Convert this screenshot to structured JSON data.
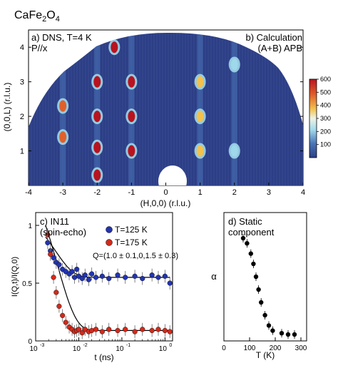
{
  "figure": {
    "compound_base": "CaFe",
    "compound_sub1": "2",
    "compound_mid": "O",
    "compound_sub2": "4"
  },
  "panel_a": {
    "label": "a) DNS, T=4 K",
    "label2": "P//x",
    "right_label": "b) Calculation",
    "right_label2": "(A+B) APB",
    "xlabel": "(H,0,0) (r.l.u.)",
    "ylabel": "(0,0,L) (r.l.u.)",
    "xticks": [
      "-4",
      "-3",
      "-2",
      "-1",
      "0",
      "1",
      "2",
      "3",
      "4"
    ],
    "yticks": [
      "1",
      "2",
      "3",
      "4"
    ],
    "colorbar_ticks": [
      "100",
      "200",
      "300",
      "400",
      "500",
      "600"
    ],
    "colors": {
      "background": "#2c3e86",
      "hot": "#b8131f",
      "warm": "#f2c14e",
      "cyan": "#9fd8ea"
    }
  },
  "panel_c": {
    "label": "c) IN11",
    "label2": "(spin-echo)",
    "legend_blue": "T=125 K",
    "legend_red": "T=175 K",
    "q_annotation": "Q=(1.0 ± 0.1,0,1.5 ± 0.3)",
    "xlabel": "t (ns)",
    "ylabel": "I(Q,t)/I(Q,0)",
    "yticks": [
      "0",
      "0.5",
      "1"
    ],
    "xticks": [
      "10",
      "10",
      "10",
      "10"
    ],
    "xtick_exps": [
      "-3",
      "-2",
      "-1",
      "0"
    ],
    "colors": {
      "blue": "#2234b0",
      "red": "#d12a1c"
    }
  },
  "panel_d": {
    "label": "d) Static",
    "label2": "component",
    "xlabel": "T (K)",
    "ylabel": "α",
    "xticks": [
      "0",
      "100",
      "200",
      "300"
    ]
  },
  "chart_data": [
    {
      "type": "heatmap",
      "panel": "a/b",
      "xlabel": "(H,0,0) (r.l.u.)",
      "ylabel": "(0,0,L) (r.l.u.)",
      "xlim": [
        -4,
        4
      ],
      "ylim": [
        0,
        4.5
      ],
      "colorbar_range": [
        0,
        600
      ],
      "spots": [
        {
          "h": -2,
          "l": 0.3,
          "i": 600
        },
        {
          "h": -2,
          "l": 1.1,
          "i": 600
        },
        {
          "h": -2,
          "l": 2.0,
          "i": 600
        },
        {
          "h": -2,
          "l": 3.0,
          "i": 600
        },
        {
          "h": -1,
          "l": 1.0,
          "i": 600
        },
        {
          "h": -1,
          "l": 2.0,
          "i": 600
        },
        {
          "h": -1,
          "l": 3.0,
          "i": 600
        },
        {
          "h": -1.5,
          "l": 4.0,
          "i": 600
        },
        {
          "h": -3,
          "l": 1.4,
          "i": 500
        },
        {
          "h": -3,
          "l": 2.3,
          "i": 500
        },
        {
          "h": 1,
          "l": 1.0,
          "i": 300
        },
        {
          "h": 1,
          "l": 2.0,
          "i": 300
        },
        {
          "h": 1,
          "l": 3.0,
          "i": 300
        },
        {
          "h": 2,
          "l": 1.0,
          "i": 250
        },
        {
          "h": 2,
          "l": 3.5,
          "i": 250
        }
      ]
    },
    {
      "type": "scatter",
      "panel": "c",
      "xlabel": "t (ns)",
      "ylabel": "I(Q,t)/I(Q,0)",
      "xscale": "log",
      "xlim": [
        0.001,
        1.5
      ],
      "ylim": [
        0,
        1
      ],
      "series": [
        {
          "name": "T=125 K",
          "x": [
            0.0019,
            0.0022,
            0.0026,
            0.003,
            0.0035,
            0.0042,
            0.005,
            0.006,
            0.007,
            0.008,
            0.009,
            0.01,
            0.012,
            0.014,
            0.017,
            0.02,
            0.025,
            0.035,
            0.05,
            0.08,
            0.12,
            0.2,
            0.3,
            0.5,
            0.7,
            1.0,
            1.3
          ],
          "y": [
            0.85,
            0.78,
            0.72,
            0.68,
            0.66,
            0.62,
            0.6,
            0.58,
            0.6,
            0.55,
            0.62,
            0.56,
            0.54,
            0.57,
            0.53,
            0.58,
            0.55,
            0.56,
            0.54,
            0.57,
            0.55,
            0.56,
            0.54,
            0.57,
            0.55,
            0.56,
            0.5
          ],
          "fit_plateau": 0.55
        },
        {
          "name": "T=175 K",
          "x": [
            0.0019,
            0.0022,
            0.0026,
            0.003,
            0.0035,
            0.0042,
            0.005,
            0.006,
            0.007,
            0.008,
            0.009,
            0.01,
            0.012,
            0.014,
            0.017,
            0.02,
            0.025,
            0.035,
            0.05,
            0.08,
            0.12,
            0.2,
            0.3,
            0.5,
            0.7,
            1.0,
            1.3
          ],
          "y": [
            0.92,
            0.75,
            0.55,
            0.42,
            0.3,
            0.22,
            0.16,
            0.12,
            0.1,
            0.08,
            0.09,
            0.1,
            0.07,
            0.1,
            0.08,
            0.09,
            0.1,
            0.08,
            0.1,
            0.09,
            0.1,
            0.08,
            0.1,
            0.09,
            0.1,
            0.09,
            0.08
          ],
          "fit_plateau": 0.09
        }
      ]
    },
    {
      "type": "scatter",
      "panel": "d",
      "xlabel": "T (K)",
      "ylabel": "α",
      "xlim": [
        0,
        300
      ],
      "ylim": [
        0,
        1
      ],
      "x": [
        75,
        90,
        105,
        115,
        125,
        135,
        145,
        160,
        175,
        190,
        225,
        250,
        275
      ],
      "y": [
        0.8,
        0.76,
        0.68,
        0.6,
        0.5,
        0.4,
        0.3,
        0.2,
        0.12,
        0.08,
        0.06,
        0.05,
        0.05
      ]
    }
  ]
}
